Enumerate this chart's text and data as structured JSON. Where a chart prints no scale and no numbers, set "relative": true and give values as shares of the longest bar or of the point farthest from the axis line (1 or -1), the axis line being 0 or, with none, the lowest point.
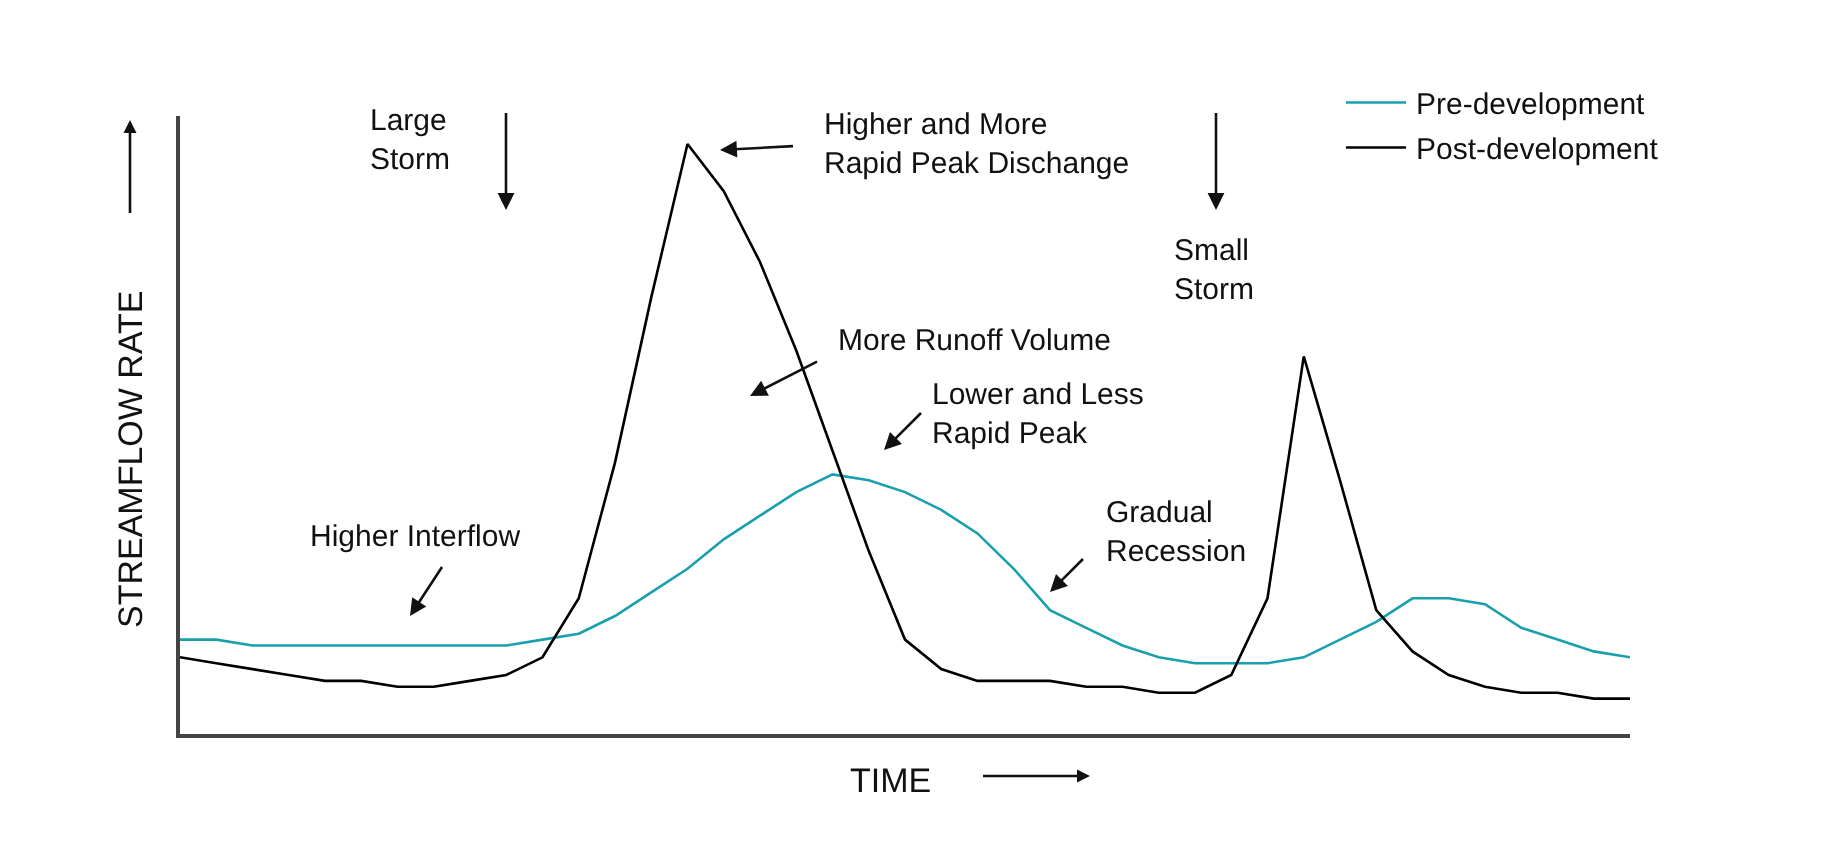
{
  "chart_data": {
    "type": "line",
    "relative": true,
    "xlabel": "TIME",
    "ylabel": "STREAMFLOW RATE",
    "tick_labels": false,
    "legend": "top right",
    "categories": [
      null,
      null,
      null,
      null,
      null,
      null,
      null,
      null,
      null,
      null,
      null,
      null,
      null,
      null,
      null,
      null,
      null,
      null,
      null,
      null,
      null,
      null,
      null,
      null,
      null,
      null,
      null,
      null,
      null,
      null,
      null,
      null,
      null,
      null,
      null,
      null,
      null,
      null,
      null,
      null,
      null
    ],
    "series": [
      {
        "name": "Pre-development",
        "color": "#1a9fad",
        "values": [
          0.16,
          0.16,
          0.15,
          0.15,
          0.15,
          0.15,
          0.15,
          0.15,
          0.15,
          0.15,
          0.16,
          0.17,
          0.2,
          0.24,
          0.28,
          0.33,
          0.37,
          0.41,
          0.44,
          0.43,
          0.41,
          0.38,
          0.34,
          0.28,
          0.21,
          0.18,
          0.15,
          0.13,
          0.12,
          0.12,
          0.12,
          0.13,
          0.16,
          0.19,
          0.23,
          0.23,
          0.22,
          0.18,
          0.16,
          0.14,
          0.13
        ]
      },
      {
        "name": "Post-development",
        "color": "#000000",
        "values": [
          0.13,
          0.12,
          0.11,
          0.1,
          0.09,
          0.09,
          0.08,
          0.08,
          0.09,
          0.1,
          0.13,
          0.23,
          0.46,
          0.74,
          1,
          0.92,
          0.8,
          0.65,
          0.48,
          0.31,
          0.16,
          0.11,
          0.09,
          0.09,
          0.09,
          0.08,
          0.08,
          0.07,
          0.07,
          0.1,
          0.23,
          0.64,
          0.43,
          0.21,
          0.14,
          0.1,
          0.08,
          0.07,
          0.07,
          0.06,
          0.06
        ]
      }
    ],
    "annotations": [
      "Large\nStorm",
      "Higher and More\nRapid Peak Dischange",
      "Small\nStorm",
      "More Runoff Volume",
      "Lower and Less\nRapid Peak",
      "Gradual\nRecession",
      "Higher Interflow"
    ]
  }
}
